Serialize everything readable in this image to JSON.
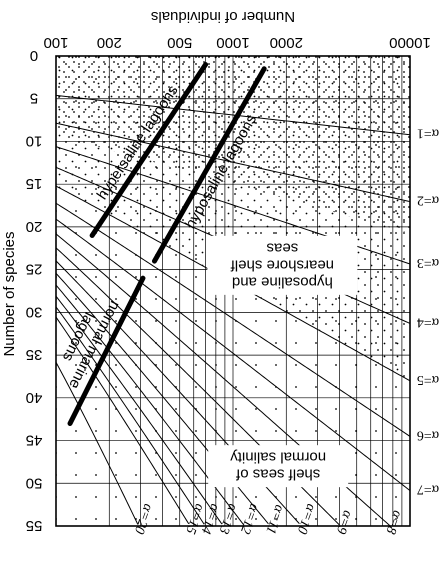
{
  "colors": {
    "ink": "#000000",
    "paper": "#ffffff"
  },
  "chart_data": {
    "type": "line",
    "title": "",
    "xlabel": "Number of individuals",
    "ylabel": "Number of species",
    "x_scale": "log",
    "xlim": [
      100,
      10000
    ],
    "ylim": [
      0,
      55
    ],
    "y_inverted": true,
    "x_ticks": [
      "100",
      "200",
      "500",
      "1000",
      "2000",
      "10000"
    ],
    "y_ticks": [
      "0",
      "5",
      "10",
      "15",
      "20",
      "25",
      "30",
      "35",
      "40",
      "45",
      "50",
      "55"
    ],
    "alpha_labels_right": [
      "α=1",
      "α=2",
      "α=3",
      "α=4",
      "α=5",
      "α=6",
      "α=7"
    ],
    "alpha_labels_bottom": [
      "α=8",
      "α=9",
      "α=10",
      "α=11",
      "α=12",
      "α=13",
      "α=14",
      "α=15",
      "α=20"
    ],
    "series": [
      {
        "name": "α=1",
        "alpha": 1
      },
      {
        "name": "α=2",
        "alpha": 2
      },
      {
        "name": "α=3",
        "alpha": 3
      },
      {
        "name": "α=4",
        "alpha": 4
      },
      {
        "name": "α=5",
        "alpha": 5
      },
      {
        "name": "α=6",
        "alpha": 6
      },
      {
        "name": "α=7",
        "alpha": 7
      },
      {
        "name": "α=8",
        "alpha": 8
      },
      {
        "name": "α=9",
        "alpha": 9
      },
      {
        "name": "α=10",
        "alpha": 10
      },
      {
        "name": "α=11",
        "alpha": 11
      },
      {
        "name": "α=12",
        "alpha": 12
      },
      {
        "name": "α=13",
        "alpha": 13
      },
      {
        "name": "α=14",
        "alpha": 14
      },
      {
        "name": "α=15",
        "alpha": 15
      },
      {
        "name": "α=20",
        "alpha": 20
      }
    ],
    "regions": [
      {
        "label": "hypersaline lagoons",
        "band": "alpha < 2.5",
        "fill": "dense stipple"
      },
      {
        "label": "normal marine lagoons",
        "band": "alpha < 2.5",
        "fill": "dense stipple"
      },
      {
        "label": "hyposaline and nearshore shelf seas",
        "band": "alpha 2.5-5",
        "fill": "medium stipple"
      },
      {
        "label": "shelf seas of normal salinity",
        "band": "alpha > 5",
        "fill": "sparse stipple"
      }
    ],
    "boundaries": [
      {
        "name": "hypersaline lagoons",
        "points": [
          [
            160,
            21
          ],
          [
            700,
            1
          ]
        ]
      },
      {
        "name": "normal marine lagoons",
        "points": [
          [
            310,
            26
          ],
          [
            120,
            43
          ]
        ]
      },
      {
        "name": "hyposaline lagoons",
        "points": [
          [
            360,
            24
          ],
          [
            1500,
            1.5
          ]
        ]
      }
    ]
  },
  "labels": {
    "x_axis_title": "Number of individuals",
    "y_axis_title": "Number of species",
    "region_hypersaline": "hypersaline lagoons",
    "region_normal_marine_1": "normal marine",
    "region_normal_marine_2": "lagoons",
    "region_hyposaline_lagoons": "hyposaline lagoons",
    "region_nearshore_1": "hyposaline and",
    "region_nearshore_2": "nearshore shelf",
    "region_nearshore_3": "seas",
    "region_shelf_1": "shelf seas of",
    "region_shelf_2": "normal salinity"
  }
}
